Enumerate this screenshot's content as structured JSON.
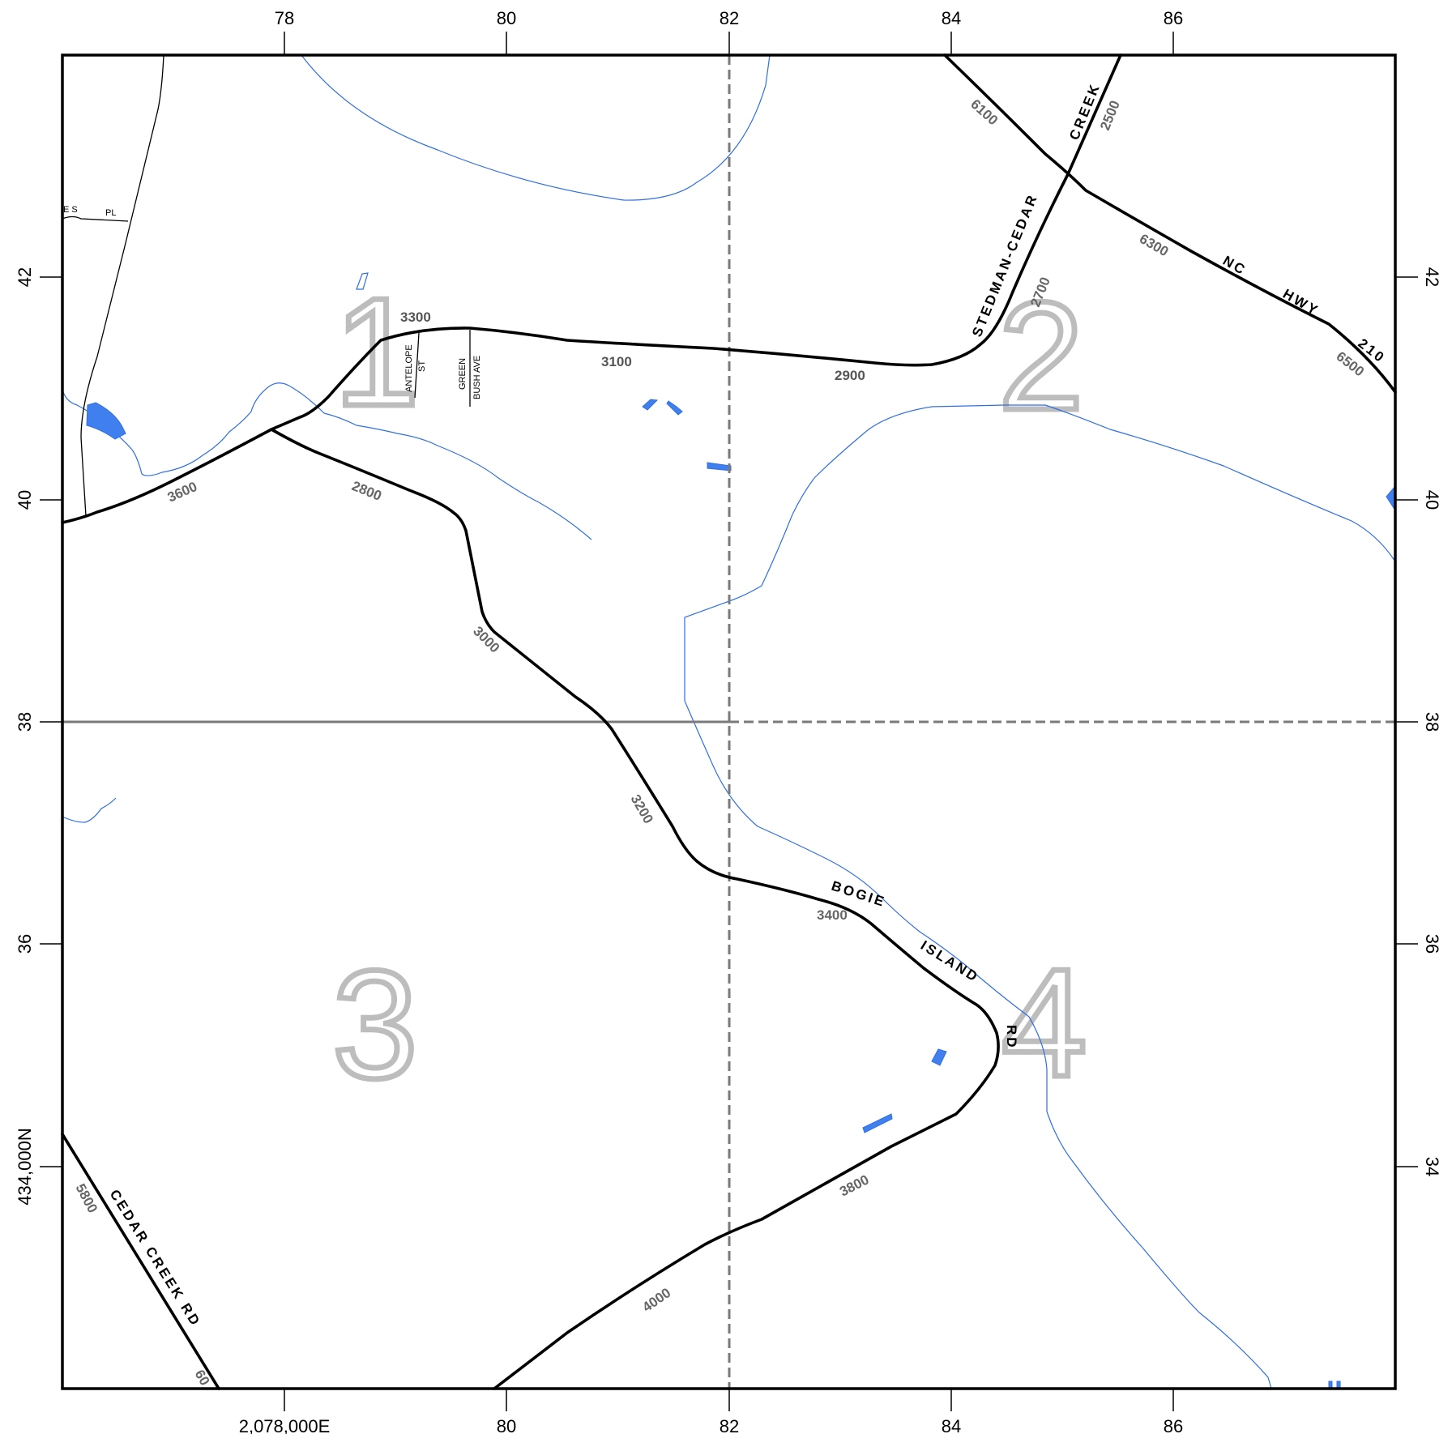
{
  "axes": {
    "top": [
      "78",
      "80",
      "82",
      "84",
      "86"
    ],
    "bottom": [
      "2,078,000E",
      "80",
      "82",
      "84",
      "86"
    ],
    "left": [
      "42",
      "40",
      "38",
      "36",
      "434,000N"
    ],
    "right": [
      "42",
      "40",
      "38",
      "36",
      "34"
    ]
  },
  "quadrants": [
    "1",
    "2",
    "3",
    "4"
  ],
  "streets": {
    "cedar_creek_rd": "CEDAR CREEK RD",
    "stedman_cedar": "STEDMAN-CEDAR",
    "creek": "CREEK",
    "nc": "NC",
    "hwy": "HWY",
    "route_210": "210",
    "bogie": "BOGIE",
    "island": "ISLAND",
    "rd": "RD",
    "antelope": "ANTELOPE",
    "st": "ST",
    "green": "GREEN",
    "bush_ave": "BUSH AVE",
    "es": "E S",
    "pl": "PL"
  },
  "addresses": {
    "a3300": "3300",
    "a3100": "3100",
    "a2900": "2900",
    "a3600": "3600",
    "a2800": "2800",
    "a3000": "3000",
    "a3200": "3200",
    "a3400": "3400",
    "a3800": "3800",
    "a4000": "4000",
    "a6100": "6100",
    "a2500": "2500",
    "a2700": "2700",
    "a6300": "6300",
    "a6500": "6500",
    "a5800": "5800",
    "a60": "60"
  },
  "colors": {
    "water": "#4080ee",
    "stream": "#2f6fe0",
    "road": "#000000",
    "grid": "#7a7a7a",
    "quadrant_label": "#bdbdbd"
  }
}
